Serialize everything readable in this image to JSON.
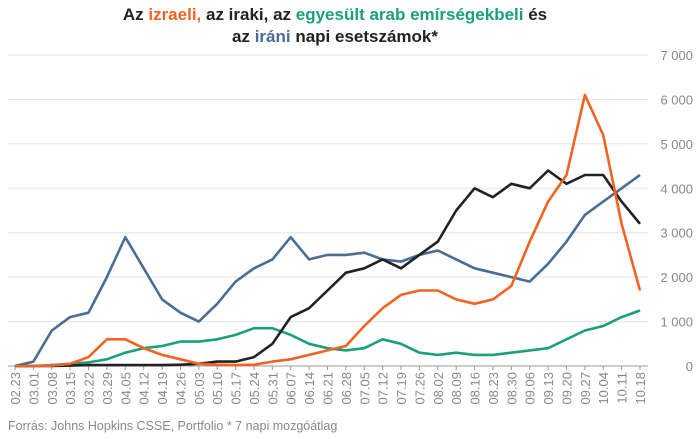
{
  "chart_data": {
    "type": "line",
    "title_lines": [
      [
        {
          "text": "Az ",
          "color": "#222222"
        },
        {
          "text": "izraeli,",
          "color": "#f26322"
        },
        {
          "text": " az iraki, az ",
          "color": "#222222"
        },
        {
          "text": "egyesült arab emírségekbeli",
          "color": "#1aa07a"
        },
        {
          "text": " és",
          "color": "#222222"
        }
      ],
      [
        {
          "text": "az ",
          "color": "#222222"
        },
        {
          "text": "iráni",
          "color": "#4a6d96"
        },
        {
          "text": " napi esetszámok*",
          "color": "#222222"
        }
      ]
    ],
    "footnote": "Forrás: Johns Hopkins CSSE, Portfolio   * 7 napi mozgóátlag",
    "categories": [
      "02.23",
      "03.01",
      "03.08",
      "03.15",
      "03.22",
      "03.29",
      "04.05",
      "04.12",
      "04.19",
      "04.26",
      "05.03",
      "05.10",
      "05.17",
      "05.24",
      "05.31",
      "06.07",
      "06.14",
      "06.21",
      "06.28",
      "07.05",
      "07.12",
      "07.19",
      "07.26",
      "08.02",
      "08.09",
      "08.16",
      "08.23",
      "08.30",
      "09.06",
      "09.13",
      "09.20",
      "09.27",
      "10.04",
      "10.11",
      "10.18"
    ],
    "series": [
      {
        "color": "#4a6d96",
        "values": [
          0,
          100,
          800,
          1100,
          1200,
          2000,
          2900,
          2200,
          1500,
          1200,
          1000,
          1400,
          1900,
          2200,
          2400,
          2900,
          2400,
          2500,
          2500,
          2550,
          2400,
          2350,
          2500,
          2600,
          2400,
          2200,
          2100,
          2000,
          1900,
          2300,
          2800,
          3400,
          3700,
          4000,
          4300
        ]
      },
      {
        "color": "#1aa07a",
        "values": [
          0,
          0,
          20,
          50,
          80,
          150,
          300,
          400,
          450,
          550,
          550,
          600,
          700,
          850,
          850,
          700,
          500,
          400,
          350,
          400,
          600,
          500,
          300,
          250,
          300,
          250,
          250,
          300,
          350,
          400,
          600,
          800,
          900,
          1100,
          1250
        ]
      },
      {
        "color": "#222222",
        "values": [
          0,
          0,
          0,
          10,
          20,
          20,
          20,
          20,
          20,
          30,
          50,
          100,
          100,
          200,
          500,
          1100,
          1300,
          1700,
          2100,
          2200,
          2400,
          2200,
          2500,
          2800,
          3500,
          4000,
          3800,
          4100,
          4000,
          4400,
          4100,
          4300,
          4300,
          3700,
          3200
        ]
      },
      {
        "color": "#f26322",
        "values": [
          0,
          0,
          10,
          50,
          200,
          600,
          600,
          400,
          250,
          150,
          50,
          30,
          20,
          30,
          100,
          150,
          250,
          350,
          450,
          900,
          1300,
          1600,
          1700,
          1700,
          1500,
          1400,
          1500,
          1800,
          2800,
          3700,
          4300,
          6100,
          5200,
          3200,
          1700
        ]
      }
    ],
    "ylim": [
      0,
      7000
    ],
    "yticks": [
      0,
      {
        "value": 1000,
        "label": "1 000"
      },
      {
        "value": 2000,
        "label": "2 000"
      },
      {
        "value": 3000,
        "label": "3 000"
      },
      {
        "value": 4000,
        "label": "4 000"
      },
      {
        "value": 5000,
        "label": "5 000"
      },
      {
        "value": 6000,
        "label": "6 000"
      },
      {
        "value": 7000,
        "label": "7 000"
      }
    ],
    "grid": true
  }
}
